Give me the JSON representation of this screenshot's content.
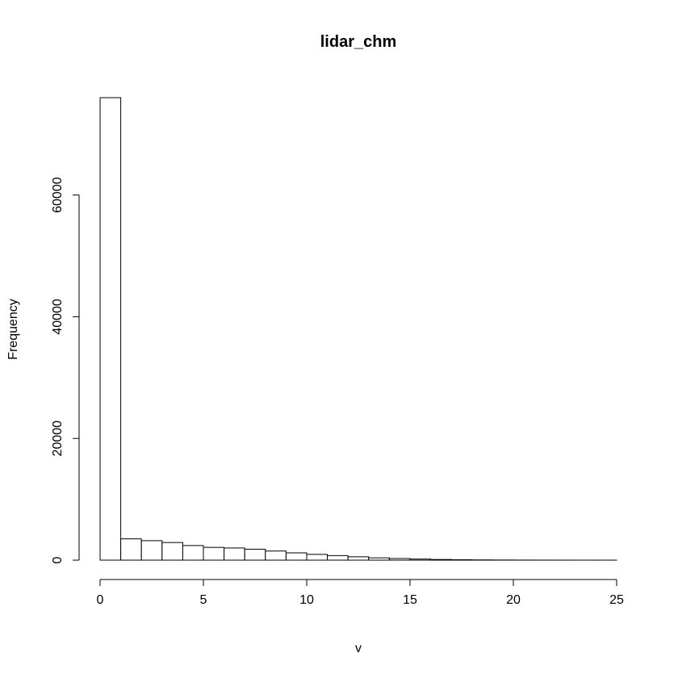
{
  "chart_data": {
    "type": "bar",
    "title": "lidar_chm",
    "xlabel": "v",
    "ylabel": "Frequency",
    "bin_edges": [
      0,
      1,
      2,
      3,
      4,
      5,
      6,
      7,
      8,
      9,
      10,
      11,
      12,
      13,
      14,
      15,
      16,
      17,
      18,
      19,
      20,
      21,
      22,
      23,
      24,
      25
    ],
    "values": [
      76000,
      3500,
      3200,
      2900,
      2400,
      2100,
      2000,
      1800,
      1500,
      1200,
      950,
      750,
      550,
      380,
      270,
      180,
      110,
      70,
      40,
      25,
      15,
      8,
      5,
      3,
      2
    ],
    "xlim": [
      0,
      25
    ],
    "ylim": [
      0,
      76000
    ],
    "x_ticks": [
      0,
      5,
      10,
      15,
      20,
      25
    ],
    "y_ticks": [
      0,
      20000,
      40000,
      60000
    ],
    "grid": false
  }
}
